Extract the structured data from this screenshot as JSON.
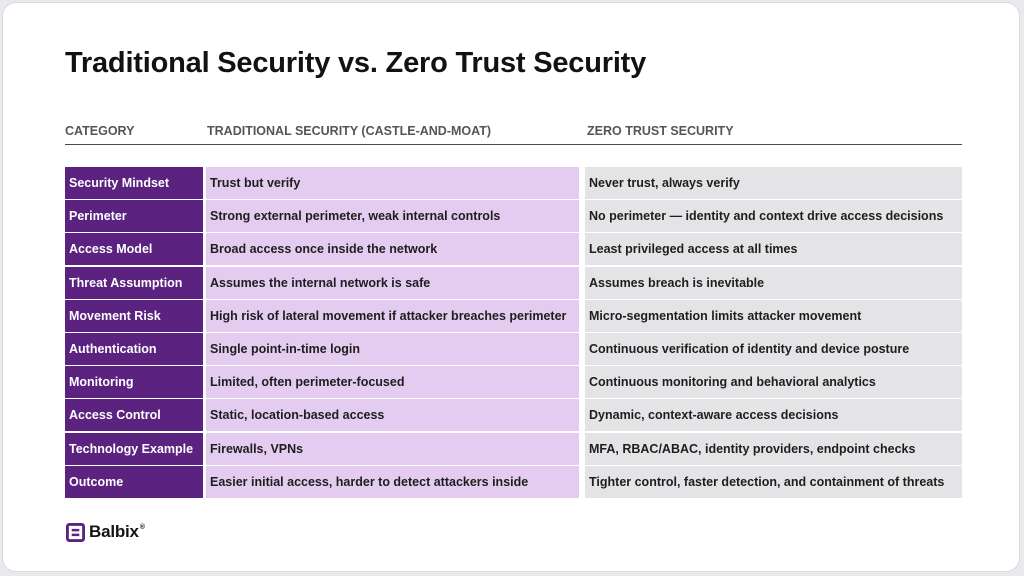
{
  "title": "Traditional Security vs. Zero Trust Security",
  "columns": {
    "category": "CATEGORY",
    "traditional": "TRADITIONAL SECURITY (CASTLE-AND-MOAT)",
    "zero_trust": "ZERO TRUST SECURITY"
  },
  "rows": [
    {
      "category": "Security Mindset",
      "traditional": "Trust but verify",
      "zero_trust": "Never trust, always verify"
    },
    {
      "category": "Perimeter",
      "traditional": "Strong external perimeter, weak internal controls",
      "zero_trust": "No perimeter — identity and context drive access decisions"
    },
    {
      "category": "Access Model",
      "traditional": "Broad access once inside the network",
      "zero_trust": "Least privileged access at all times"
    },
    {
      "category": "Threat Assumption",
      "traditional": "Assumes the internal network is safe",
      "zero_trust": "Assumes breach is inevitable"
    },
    {
      "category": "Movement Risk",
      "traditional": "High risk of lateral movement if attacker breaches perimeter",
      "zero_trust": "Micro-segmentation limits attacker movement"
    },
    {
      "category": "Authentication",
      "traditional": "Single point-in-time login",
      "zero_trust": "Continuous verification of identity and device posture"
    },
    {
      "category": "Monitoring",
      "traditional": "Limited, often perimeter-focused",
      "zero_trust": "Continuous monitoring and behavioral analytics"
    },
    {
      "category": "Access Control",
      "traditional": "Static, location-based access",
      "zero_trust": "Dynamic, context-aware access decisions"
    },
    {
      "category": "Technology Example",
      "traditional": "Firewalls, VPNs",
      "zero_trust": "MFA, RBAC/ABAC, identity providers, endpoint checks"
    },
    {
      "category": "Outcome",
      "traditional": "Easier initial access, harder to detect attackers inside",
      "zero_trust": "Tighter control, faster detection, and containment of threats"
    }
  ],
  "brand": {
    "name": "Balbix",
    "registered_mark": "®",
    "logo_icon": "balbix-logo-icon"
  },
  "colors": {
    "category_cell": "#5b2280",
    "traditional_cell": "#e3ccef",
    "zero_trust_cell": "#e4e4e7",
    "logo_accent": "#5b2280"
  }
}
